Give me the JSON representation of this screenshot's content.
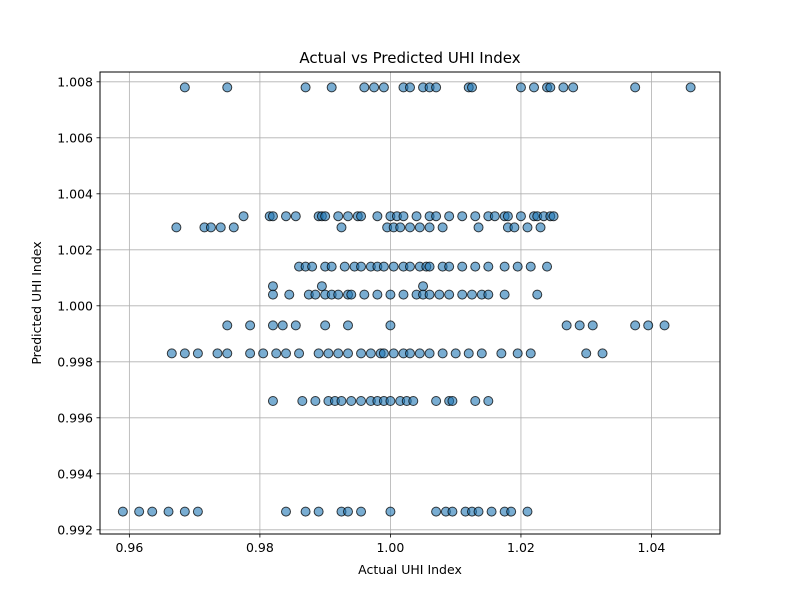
{
  "chart_data": {
    "type": "scatter",
    "title": "Actual vs Predicted UHI Index",
    "xlabel": "Actual UHI Index",
    "ylabel": "Predicted UHI Index",
    "xlim": [
      0.9555,
      1.0505
    ],
    "ylim": [
      0.99185,
      1.00835
    ],
    "xticks": [
      0.96,
      0.98,
      1.0,
      1.02,
      1.04
    ],
    "xtick_labels": [
      "0.96",
      "0.98",
      "1.00",
      "1.02",
      "1.04"
    ],
    "yticks": [
      0.992,
      0.994,
      0.996,
      0.998,
      1.0,
      1.002,
      1.004,
      1.006,
      1.008
    ],
    "ytick_labels": [
      "0.992",
      "0.994",
      "0.996",
      "0.998",
      "1.000",
      "1.002",
      "1.004",
      "1.006",
      "1.008"
    ],
    "grid": true,
    "marker_color": "#1f77b4",
    "marker_edge_color": "#000000",
    "marker_alpha": 0.6,
    "points": [
      [
        0.9685,
        1.0078
      ],
      [
        0.975,
        1.0078
      ],
      [
        0.987,
        1.0078
      ],
      [
        0.991,
        1.0078
      ],
      [
        0.996,
        1.0078
      ],
      [
        0.9975,
        1.0078
      ],
      [
        0.999,
        1.0078
      ],
      [
        1.002,
        1.0078
      ],
      [
        1.003,
        1.0078
      ],
      [
        1.005,
        1.0078
      ],
      [
        1.006,
        1.0078
      ],
      [
        1.007,
        1.0078
      ],
      [
        1.012,
        1.0078
      ],
      [
        1.0125,
        1.0078
      ],
      [
        1.02,
        1.0078
      ],
      [
        1.022,
        1.0078
      ],
      [
        1.024,
        1.0078
      ],
      [
        1.0245,
        1.0078
      ],
      [
        1.0265,
        1.0078
      ],
      [
        1.028,
        1.0078
      ],
      [
        1.0375,
        1.0078
      ],
      [
        1.046,
        1.0078
      ],
      [
        0.9815,
        1.0032
      ],
      [
        0.982,
        1.0032
      ],
      [
        0.984,
        1.0032
      ],
      [
        0.9855,
        1.0032
      ],
      [
        0.989,
        1.0032
      ],
      [
        0.9895,
        1.0032
      ],
      [
        0.99,
        1.0032
      ],
      [
        0.992,
        1.0032
      ],
      [
        0.9935,
        1.0032
      ],
      [
        0.995,
        1.0032
      ],
      [
        0.9955,
        1.0032
      ],
      [
        0.998,
        1.0032
      ],
      [
        1.0,
        1.0032
      ],
      [
        1.001,
        1.0032
      ],
      [
        1.002,
        1.0032
      ],
      [
        1.004,
        1.0032
      ],
      [
        1.006,
        1.0032
      ],
      [
        1.007,
        1.0032
      ],
      [
        1.009,
        1.0032
      ],
      [
        1.011,
        1.0032
      ],
      [
        1.013,
        1.0032
      ],
      [
        1.015,
        1.0032
      ],
      [
        1.016,
        1.0032
      ],
      [
        1.0175,
        1.0032
      ],
      [
        1.018,
        1.0032
      ],
      [
        1.02,
        1.0032
      ],
      [
        1.022,
        1.0032
      ],
      [
        1.0225,
        1.0032
      ],
      [
        1.0235,
        1.0032
      ],
      [
        1.0245,
        1.0032
      ],
      [
        1.025,
        1.0032
      ],
      [
        0.9775,
        1.0032
      ],
      [
        0.9672,
        1.0028
      ],
      [
        0.9715,
        1.0028
      ],
      [
        0.9725,
        1.0028
      ],
      [
        0.974,
        1.0028
      ],
      [
        0.976,
        1.0028
      ],
      [
        0.9925,
        1.0028
      ],
      [
        0.9995,
        1.0028
      ],
      [
        1.0005,
        1.0028
      ],
      [
        1.0015,
        1.0028
      ],
      [
        1.003,
        1.0028
      ],
      [
        1.0045,
        1.0028
      ],
      [
        1.006,
        1.0028
      ],
      [
        1.008,
        1.0028
      ],
      [
        1.0135,
        1.0028
      ],
      [
        1.018,
        1.0028
      ],
      [
        1.019,
        1.0028
      ],
      [
        1.021,
        1.0028
      ],
      [
        1.023,
        1.0028
      ],
      [
        0.986,
        1.0014
      ],
      [
        0.987,
        1.0014
      ],
      [
        0.988,
        1.0014
      ],
      [
        0.99,
        1.0014
      ],
      [
        0.991,
        1.0014
      ],
      [
        0.993,
        1.0014
      ],
      [
        0.9945,
        1.0014
      ],
      [
        0.9955,
        1.0014
      ],
      [
        0.997,
        1.0014
      ],
      [
        0.998,
        1.0014
      ],
      [
        0.999,
        1.0014
      ],
      [
        1.0005,
        1.0014
      ],
      [
        1.002,
        1.0014
      ],
      [
        1.003,
        1.0014
      ],
      [
        1.0045,
        1.0014
      ],
      [
        1.0055,
        1.0014
      ],
      [
        1.006,
        1.0014
      ],
      [
        1.008,
        1.0014
      ],
      [
        1.009,
        1.0014
      ],
      [
        1.011,
        1.0014
      ],
      [
        1.013,
        1.0014
      ],
      [
        1.015,
        1.0014
      ],
      [
        1.0175,
        1.0014
      ],
      [
        1.0195,
        1.0014
      ],
      [
        1.0215,
        1.0014
      ],
      [
        1.024,
        1.0014
      ],
      [
        0.982,
        1.0007
      ],
      [
        0.9895,
        1.0007
      ],
      [
        1.005,
        1.0007
      ],
      [
        0.982,
        1.0004
      ],
      [
        0.9845,
        1.0004
      ],
      [
        0.9875,
        1.0004
      ],
      [
        0.9885,
        1.0004
      ],
      [
        0.99,
        1.0004
      ],
      [
        0.991,
        1.0004
      ],
      [
        0.992,
        1.0004
      ],
      [
        0.9935,
        1.0004
      ],
      [
        0.994,
        1.0004
      ],
      [
        0.996,
        1.0004
      ],
      [
        0.998,
        1.0004
      ],
      [
        1.0,
        1.0004
      ],
      [
        1.002,
        1.0004
      ],
      [
        1.004,
        1.0004
      ],
      [
        1.005,
        1.0004
      ],
      [
        1.006,
        1.0004
      ],
      [
        1.0075,
        1.0004
      ],
      [
        1.009,
        1.0004
      ],
      [
        1.011,
        1.0004
      ],
      [
        1.0125,
        1.0004
      ],
      [
        1.014,
        1.0004
      ],
      [
        1.015,
        1.0004
      ],
      [
        1.0175,
        1.0004
      ],
      [
        1.0225,
        1.0004
      ],
      [
        0.975,
        0.9993
      ],
      [
        0.9785,
        0.9993
      ],
      [
        0.982,
        0.9993
      ],
      [
        0.9835,
        0.9993
      ],
      [
        0.9855,
        0.9993
      ],
      [
        0.99,
        0.9993
      ],
      [
        0.9935,
        0.9993
      ],
      [
        1.0,
        0.9993
      ],
      [
        1.027,
        0.9993
      ],
      [
        1.029,
        0.9993
      ],
      [
        1.031,
        0.9993
      ],
      [
        1.0375,
        0.9993
      ],
      [
        1.0395,
        0.9993
      ],
      [
        1.042,
        0.9993
      ],
      [
        0.9665,
        0.9983
      ],
      [
        0.9685,
        0.9983
      ],
      [
        0.9705,
        0.9983
      ],
      [
        0.9735,
        0.9983
      ],
      [
        0.975,
        0.9983
      ],
      [
        0.9785,
        0.9983
      ],
      [
        0.9805,
        0.9983
      ],
      [
        0.9825,
        0.9983
      ],
      [
        0.984,
        0.9983
      ],
      [
        0.986,
        0.9983
      ],
      [
        0.989,
        0.9983
      ],
      [
        0.9905,
        0.9983
      ],
      [
        0.992,
        0.9983
      ],
      [
        0.9935,
        0.9983
      ],
      [
        0.9955,
        0.9983
      ],
      [
        0.997,
        0.9983
      ],
      [
        0.9985,
        0.9983
      ],
      [
        0.999,
        0.9983
      ],
      [
        1.0005,
        0.9983
      ],
      [
        1.002,
        0.9983
      ],
      [
        1.003,
        0.9983
      ],
      [
        1.0045,
        0.9983
      ],
      [
        1.006,
        0.9983
      ],
      [
        1.008,
        0.9983
      ],
      [
        1.01,
        0.9983
      ],
      [
        1.012,
        0.9983
      ],
      [
        1.014,
        0.9983
      ],
      [
        1.017,
        0.9983
      ],
      [
        1.0195,
        0.9983
      ],
      [
        1.0215,
        0.9983
      ],
      [
        1.03,
        0.9983
      ],
      [
        1.0325,
        0.9983
      ],
      [
        0.982,
        0.9966
      ],
      [
        0.9865,
        0.9966
      ],
      [
        0.9885,
        0.9966
      ],
      [
        0.9905,
        0.9966
      ],
      [
        0.9915,
        0.9966
      ],
      [
        0.9925,
        0.9966
      ],
      [
        0.994,
        0.9966
      ],
      [
        0.9955,
        0.9966
      ],
      [
        0.997,
        0.9966
      ],
      [
        0.998,
        0.9966
      ],
      [
        0.999,
        0.9966
      ],
      [
        1.0,
        0.9966
      ],
      [
        1.0015,
        0.9966
      ],
      [
        1.0025,
        0.9966
      ],
      [
        1.0035,
        0.9966
      ],
      [
        1.007,
        0.9966
      ],
      [
        1.009,
        0.9966
      ],
      [
        1.0095,
        0.9966
      ],
      [
        1.013,
        0.9966
      ],
      [
        1.015,
        0.9966
      ],
      [
        0.959,
        0.99265
      ],
      [
        0.9615,
        0.99265
      ],
      [
        0.9635,
        0.99265
      ],
      [
        0.966,
        0.99265
      ],
      [
        0.9685,
        0.99265
      ],
      [
        0.9705,
        0.99265
      ],
      [
        0.984,
        0.99265
      ],
      [
        0.987,
        0.99265
      ],
      [
        0.989,
        0.99265
      ],
      [
        0.9925,
        0.99265
      ],
      [
        0.9935,
        0.99265
      ],
      [
        0.9955,
        0.99265
      ],
      [
        1.0,
        0.99265
      ],
      [
        1.007,
        0.99265
      ],
      [
        1.0085,
        0.99265
      ],
      [
        1.0095,
        0.99265
      ],
      [
        1.0115,
        0.99265
      ],
      [
        1.0125,
        0.99265
      ],
      [
        1.0135,
        0.99265
      ],
      [
        1.0155,
        0.99265
      ],
      [
        1.0175,
        0.99265
      ],
      [
        1.0185,
        0.99265
      ],
      [
        1.021,
        0.99265
      ]
    ]
  }
}
